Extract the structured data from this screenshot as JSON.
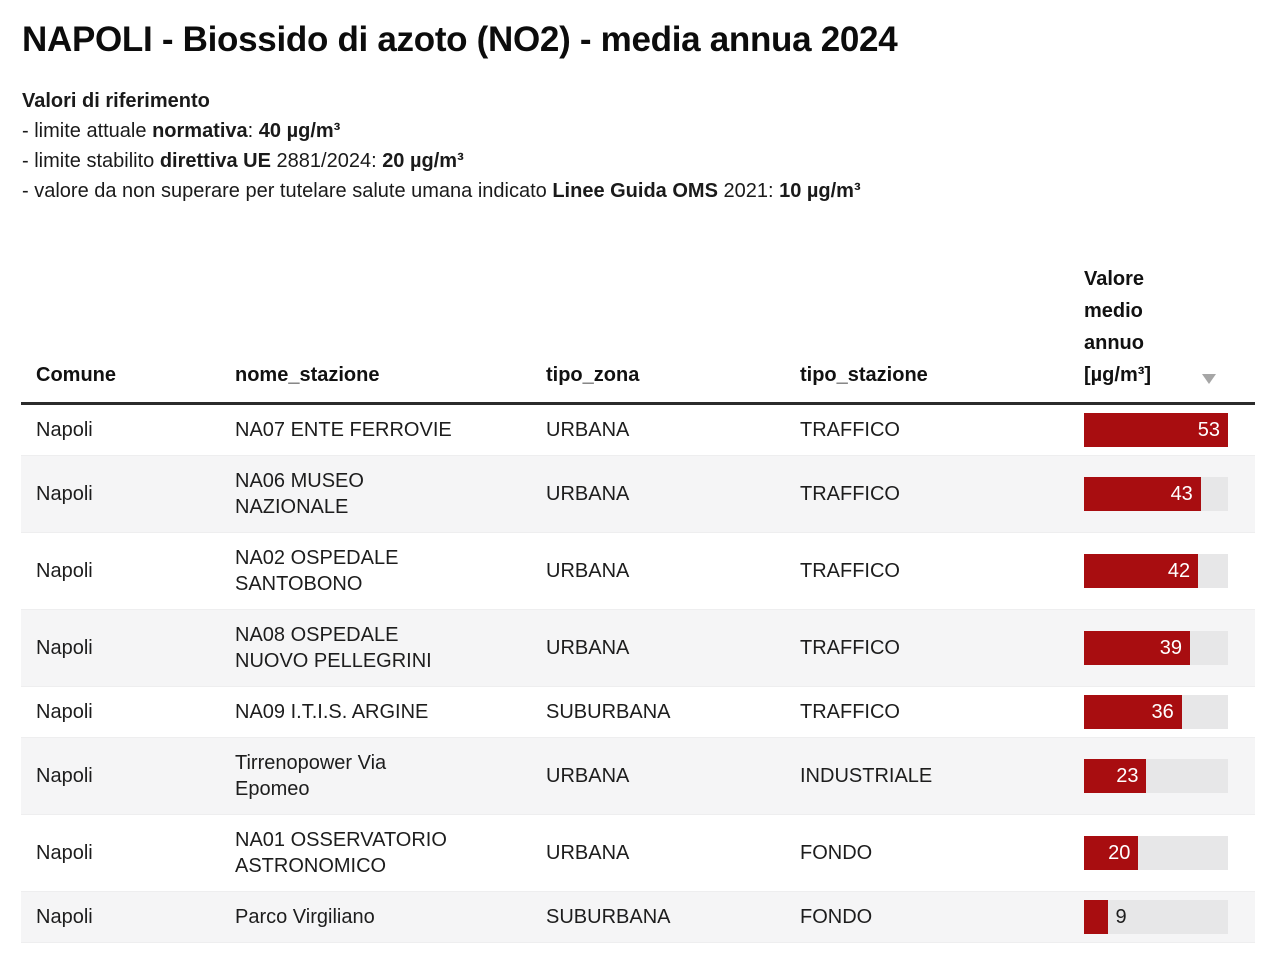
{
  "header": {
    "title": "NAPOLI - Biossido di azoto (NO2) - media annua 2024"
  },
  "reference": {
    "heading": "Valori di riferimento",
    "line1": [
      "- limite attuale ",
      "normativa",
      ": ",
      "40 µg/m³"
    ],
    "line2": [
      "- limite stabilito ",
      "direttiva UE",
      " 2881/2024: ",
      "20 µg/m³"
    ],
    "line3": [
      "- valore da non superare per tutelare salute umana indicato ",
      "Linee Guida OMS",
      " 2021: ",
      "10 µg/m³"
    ]
  },
  "chart_data": {
    "type": "table",
    "title": "NAPOLI - Biossido di azoto (NO2) - media annua 2024",
    "columns": [
      "Comune",
      "nome_stazione",
      "tipo_zona",
      "tipo_stazione",
      "Valore medio annuo [µg/m³]"
    ],
    "rows": [
      {
        "comune": "Napoli",
        "nome_stazione": "NA07 ENTE FERROVIE",
        "tipo_zona": "URBANA",
        "tipo_stazione": "TRAFFICO",
        "valore": 53
      },
      {
        "comune": "Napoli",
        "nome_stazione": "NA06 MUSEO\nNAZIONALE",
        "tipo_zona": "URBANA",
        "tipo_stazione": "TRAFFICO",
        "valore": 43
      },
      {
        "comune": "Napoli",
        "nome_stazione": "NA02 OSPEDALE\nSANTOBONO",
        "tipo_zona": "URBANA",
        "tipo_stazione": "TRAFFICO",
        "valore": 42
      },
      {
        "comune": "Napoli",
        "nome_stazione": "NA08 OSPEDALE\nNUOVO PELLEGRINI",
        "tipo_zona": "URBANA",
        "tipo_stazione": "TRAFFICO",
        "valore": 39
      },
      {
        "comune": "Napoli",
        "nome_stazione": "NA09 I.T.I.S. ARGINE",
        "tipo_zona": "SUBURBANA",
        "tipo_stazione": "TRAFFICO",
        "valore": 36
      },
      {
        "comune": "Napoli",
        "nome_stazione": "Tirrenopower Via\nEpomeo",
        "tipo_zona": "URBANA",
        "tipo_stazione": "INDUSTRIALE",
        "valore": 23
      },
      {
        "comune": "Napoli",
        "nome_stazione": "NA01 OSSERVATORIO\nASTRONOMICO",
        "tipo_zona": "URBANA",
        "tipo_stazione": "FONDO",
        "valore": 20
      },
      {
        "comune": "Napoli",
        "nome_stazione": "Parco Virgiliano",
        "tipo_zona": "SUBURBANA",
        "tipo_stazione": "FONDO",
        "valore": 9
      }
    ],
    "bar": {
      "max": 53,
      "color": "#a80d10",
      "track_color": "#e7e7e8",
      "label_inside_color": "#ffffff",
      "label_outside_color": "#1d1d1d"
    },
    "sort": {
      "column": "Valore medio annuo [µg/m³]",
      "direction": "desc"
    }
  }
}
